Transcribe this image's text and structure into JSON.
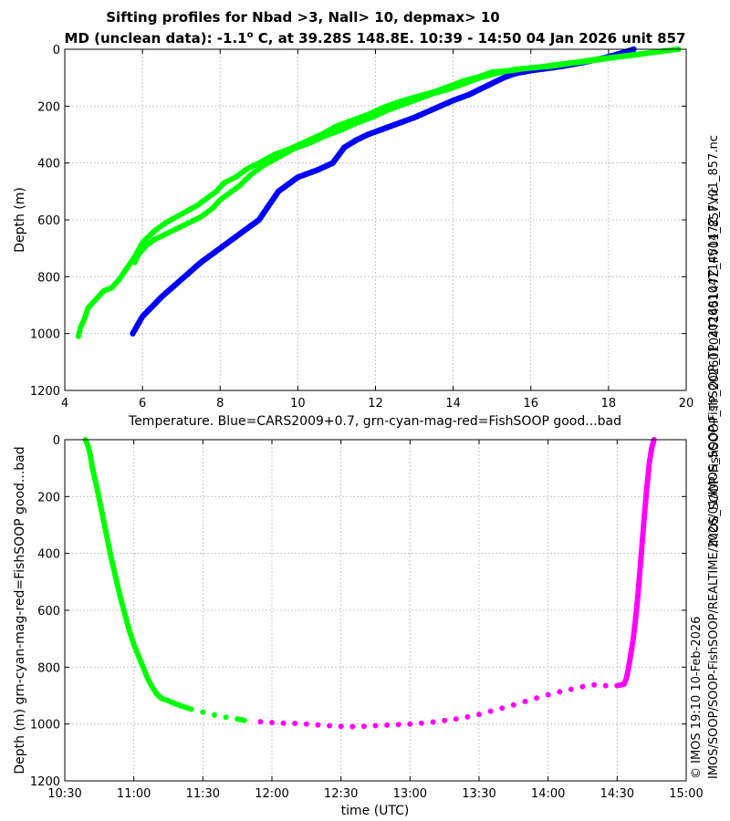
{
  "figure": {
    "title_line1": "Sifting profiles for Nbad >3, Nall> 10, depmax> 10",
    "title_line2_prefix": "MD (unclean data): -1.1",
    "title_line2_degree": "o",
    "title_line2_suffix": " C, at 39.28S 148.8E. 10:39 - 14:50 04 Jan 2026 unit 857",
    "side_text_right": "IMOS_SOOP-FishSOOP_TP_20260104T145147Z_FV01_857.nc",
    "side_text_credit": "© IMOS 19:10 10-Feb-2026",
    "side_text_path": "IMOS/SOOP/SOOP-FishSOOP/REALTIME/2026/01/IMOS_SOOP-FishSOOP_TP_20260104T145147Z_FV01_857.nc",
    "colors": {
      "good": "#00ff00",
      "bad": "#ff00ff",
      "climatology": "#0000ff"
    }
  },
  "chart_data": [
    {
      "type": "scatter",
      "xlabel": "Temperature. Blue=CARS2009+0.7, grn-cyan-mag-red=FishSOOP good...bad",
      "ylabel": "Depth (m)",
      "xlim": [
        4,
        20
      ],
      "ylim": [
        1200,
        0
      ],
      "y_reversed": true,
      "grid": true,
      "xticks": [
        "4",
        "6",
        "8",
        "10",
        "12",
        "14",
        "16",
        "18",
        "20"
      ],
      "yticks": [
        "0",
        "200",
        "400",
        "600",
        "800",
        "1000",
        "1200"
      ],
      "series": [
        {
          "color": "#0000ff",
          "x": [
            18.65,
            18.3,
            17.9,
            17.4,
            16.8,
            16.0,
            15.6,
            15.3,
            15.0,
            14.7,
            14.4,
            14.0,
            13.5,
            13.0,
            12.4,
            11.8,
            11.5,
            11.2,
            10.9,
            10.5,
            10.0,
            9.5,
            9.0,
            8.5,
            8.0,
            7.5,
            7.0,
            6.5,
            6.0,
            5.75
          ],
          "y": [
            0,
            15,
            30,
            45,
            60,
            75,
            85,
            100,
            120,
            140,
            160,
            180,
            210,
            240,
            270,
            300,
            320,
            345,
            400,
            425,
            450,
            500,
            600,
            650,
            700,
            750,
            810,
            870,
            940,
            1000
          ]
        },
        {
          "color": "#00ff00",
          "x": [
            19.8,
            19.2,
            18.7,
            18.1,
            17.6,
            17.0,
            16.5,
            16.0,
            15.5,
            15.0,
            14.7,
            14.3,
            13.9,
            13.5,
            13.1,
            12.6,
            12.2,
            11.8,
            11.4,
            11.0,
            10.6,
            10.2,
            9.8,
            9.4,
            9.0,
            8.7,
            8.4,
            8.1,
            7.9,
            7.7,
            7.4,
            7.0,
            6.6,
            6.3,
            6.0,
            5.8,
            5.6,
            5.4,
            5.2,
            5.0,
            4.8,
            4.6,
            4.5,
            4.4,
            4.35
          ],
          "y": [
            0,
            10,
            20,
            30,
            40,
            50,
            60,
            65,
            75,
            80,
            95,
            110,
            130,
            150,
            165,
            185,
            205,
            230,
            250,
            270,
            300,
            325,
            350,
            370,
            400,
            420,
            450,
            470,
            500,
            520,
            550,
            580,
            610,
            640,
            680,
            730,
            770,
            810,
            840,
            850,
            880,
            910,
            950,
            980,
            1010
          ]
        },
        {
          "color": "#00ff00",
          "x": [
            19.5,
            18.9,
            18.3,
            17.7,
            17.2,
            16.6,
            16.1,
            15.6,
            15.1,
            14.7,
            14.3,
            13.9,
            13.5,
            13.1,
            12.7,
            12.3,
            11.9,
            11.5,
            11.1,
            10.7,
            10.3,
            9.9,
            9.5,
            9.1,
            8.8,
            8.5,
            8.3,
            8.0,
            7.8,
            7.5,
            7.2,
            6.9,
            6.6,
            6.3,
            6.1,
            5.9,
            5.8
          ],
          "y": [
            5,
            15,
            25,
            35,
            45,
            55,
            65,
            70,
            85,
            100,
            120,
            140,
            155,
            175,
            195,
            215,
            240,
            260,
            285,
            305,
            330,
            350,
            380,
            410,
            440,
            480,
            500,
            530,
            560,
            590,
            610,
            630,
            650,
            670,
            690,
            720,
            750
          ]
        }
      ]
    },
    {
      "type": "scatter",
      "xlabel": "time (UTC)",
      "ylabel": "Depth (m) grn-cyan-mag-red=FishSOOP good...bad",
      "xlim": [
        "10:30",
        "15:00"
      ],
      "ylim": [
        1200,
        0
      ],
      "y_reversed": true,
      "grid": true,
      "xticks": [
        "10:30",
        "11:00",
        "11:30",
        "12:00",
        "12:30",
        "13:00",
        "13:30",
        "14:00",
        "14:30",
        "15:00"
      ],
      "yticks": [
        "0",
        "200",
        "400",
        "600",
        "800",
        "1000",
        "1200"
      ],
      "series": [
        {
          "color": "#00ff00",
          "x": [
            "10:39",
            "10:40",
            "10:41",
            "10:42",
            "10:44",
            "10:46",
            "10:48",
            "10:50",
            "10:52",
            "10:54",
            "10:56",
            "10:58",
            "11:00",
            "11:02",
            "11:04",
            "11:06",
            "11:08",
            "11:10",
            "11:12",
            "11:14",
            "11:15",
            "11:16",
            "11:20",
            "11:25",
            "11:30",
            "11:35",
            "11:40",
            "11:45",
            "11:48"
          ],
          "y": [
            0,
            20,
            50,
            100,
            170,
            250,
            330,
            410,
            480,
            550,
            610,
            670,
            720,
            760,
            800,
            840,
            870,
            895,
            910,
            915,
            918,
            922,
            935,
            948,
            958,
            968,
            976,
            982,
            987
          ]
        },
        {
          "color": "#ff00ff",
          "x": [
            "11:55",
            "12:00",
            "12:05",
            "12:10",
            "12:15",
            "12:20",
            "12:25",
            "12:30",
            "12:35",
            "12:40",
            "12:45",
            "12:50",
            "12:55",
            "13:00",
            "13:05",
            "13:10",
            "13:15",
            "13:20",
            "13:25",
            "13:30",
            "13:35",
            "13:40",
            "13:45",
            "13:50",
            "13:55",
            "14:00",
            "14:05",
            "14:10",
            "14:15",
            "14:20",
            "14:25",
            "14:30",
            "14:33",
            "14:34",
            "14:35",
            "14:36",
            "14:37",
            "14:38",
            "14:39",
            "14:40",
            "14:41",
            "14:42",
            "14:43",
            "14:44",
            "14:45",
            "14:46"
          ],
          "y": [
            992,
            995,
            997,
            998,
            1000,
            1003,
            1006,
            1008,
            1009,
            1008,
            1006,
            1004,
            1002,
            1000,
            997,
            993,
            988,
            982,
            975,
            966,
            955,
            944,
            933,
            921,
            909,
            897,
            887,
            878,
            869,
            862,
            865,
            865,
            860,
            840,
            800,
            750,
            700,
            630,
            550,
            450,
            350,
            250,
            160,
            80,
            30,
            0
          ]
        }
      ]
    }
  ]
}
